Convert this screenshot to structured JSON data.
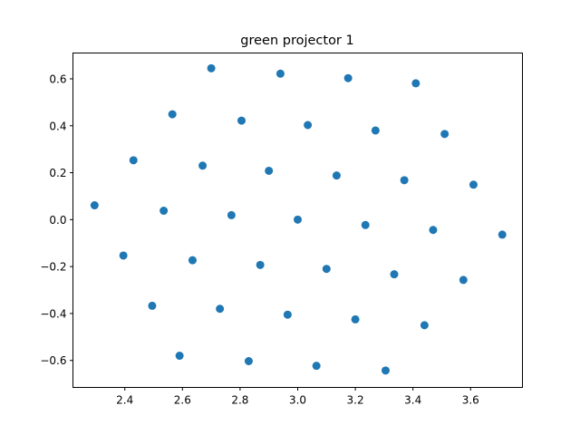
{
  "chart_data": {
    "type": "scatter",
    "title": "green projector 1",
    "xlabel": "",
    "ylabel": "",
    "xlim": [
      2.22,
      3.78
    ],
    "ylim": [
      -0.715,
      0.71
    ],
    "xticks": [
      2.4,
      2.6,
      2.8,
      3.0,
      3.2,
      3.4,
      3.6
    ],
    "xtick_labels": [
      "2.4",
      "2.6",
      "2.8",
      "3.0",
      "3.2",
      "3.4",
      "3.6"
    ],
    "yticks": [
      -0.6,
      -0.4,
      -0.2,
      0.0,
      0.2,
      0.4,
      0.6
    ],
    "ytick_labels": [
      "−0.6",
      "−0.4",
      "−0.2",
      "0.0",
      "0.2",
      "0.4",
      "0.6"
    ],
    "grid": false,
    "marker_color": "#1f77b4",
    "points": [
      [
        2.7,
        0.645
      ],
      [
        2.94,
        0.622
      ],
      [
        3.175,
        0.603
      ],
      [
        3.41,
        0.581
      ],
      [
        2.565,
        0.449
      ],
      [
        2.805,
        0.422
      ],
      [
        3.035,
        0.403
      ],
      [
        3.27,
        0.38
      ],
      [
        3.51,
        0.365
      ],
      [
        2.43,
        0.253
      ],
      [
        2.67,
        0.23
      ],
      [
        2.9,
        0.208
      ],
      [
        3.135,
        0.188
      ],
      [
        3.37,
        0.168
      ],
      [
        3.61,
        0.149
      ],
      [
        2.295,
        0.061
      ],
      [
        2.535,
        0.038
      ],
      [
        2.77,
        0.019
      ],
      [
        3.0,
        0.0
      ],
      [
        3.235,
        -0.023
      ],
      [
        3.47,
        -0.044
      ],
      [
        3.71,
        -0.064
      ],
      [
        2.395,
        -0.153
      ],
      [
        2.635,
        -0.173
      ],
      [
        2.87,
        -0.193
      ],
      [
        3.1,
        -0.21
      ],
      [
        3.335,
        -0.233
      ],
      [
        3.575,
        -0.257
      ],
      [
        2.495,
        -0.367
      ],
      [
        2.73,
        -0.38
      ],
      [
        2.965,
        -0.405
      ],
      [
        3.2,
        -0.425
      ],
      [
        3.44,
        -0.45
      ],
      [
        2.59,
        -0.58
      ],
      [
        2.83,
        -0.603
      ],
      [
        3.065,
        -0.623
      ],
      [
        3.305,
        -0.643
      ]
    ]
  }
}
